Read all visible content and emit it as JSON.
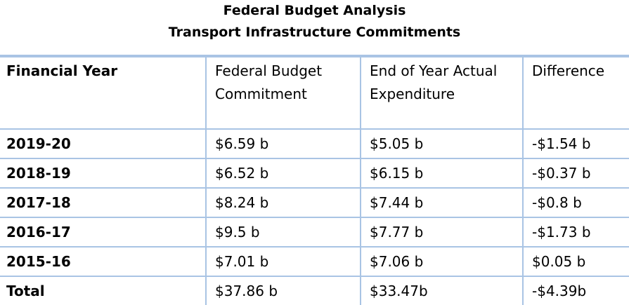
{
  "title": {
    "line1": "Federal Budget Analysis",
    "line2": "Transport Infrastructure Commitments"
  },
  "table": {
    "headers": [
      "Financial Year",
      "Federal Budget Commitment",
      "End of Year Actual Expenditure",
      "Difference"
    ],
    "rows": [
      [
        "2019-20",
        "$6.59 b",
        "$5.05 b",
        "-$1.54 b"
      ],
      [
        "2018-19",
        "$6.52 b",
        "$6.15 b",
        "-$0.37 b"
      ],
      [
        "2017-18",
        "$8.24 b",
        "$7.44 b",
        "-$0.8 b"
      ],
      [
        "2016-17",
        "$9.5 b",
        "$7.77 b",
        "-$1.73 b"
      ],
      [
        "2015-16",
        "$7.01 b",
        "$7.06 b",
        "$0.05 b"
      ]
    ],
    "total": [
      "Total",
      "$37.86 b",
      "$33.47b",
      "-$4.39b"
    ]
  },
  "colors": {
    "rule": "#a9c4e4",
    "text": "#000000",
    "background": "#ffffff"
  }
}
